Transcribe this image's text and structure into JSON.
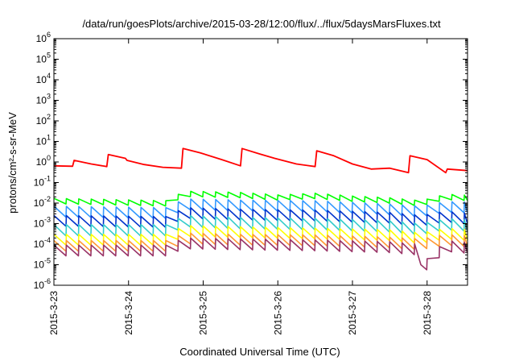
{
  "chart_data": {
    "type": "line",
    "title": "/data/run/goesPlots/archive/2015-03-28/12:00/flux/../flux/5daysMarsFluxes.txt",
    "xlabel": "Coordinated Universal Time (UTC)",
    "ylabel": "protons/cm²-s-sr-MeV",
    "y_scale": "log",
    "ylim": [
      1e-06,
      1000000.0
    ],
    "y_ticks": [
      {
        "base": "10",
        "exp": "-6",
        "value": 1e-06
      },
      {
        "base": "10",
        "exp": "-5",
        "value": 1e-05
      },
      {
        "base": "10",
        "exp": "-4",
        "value": 0.0001
      },
      {
        "base": "10",
        "exp": "-3",
        "value": 0.001
      },
      {
        "base": "10",
        "exp": "-2",
        "value": 0.01
      },
      {
        "base": "10",
        "exp": "-1",
        "value": 0.1
      },
      {
        "base": "10",
        "exp": "0",
        "value": 1
      },
      {
        "base": "10",
        "exp": "1",
        "value": 10
      },
      {
        "base": "10",
        "exp": "2",
        "value": 100
      },
      {
        "base": "10",
        "exp": "3",
        "value": 1000
      },
      {
        "base": "10",
        "exp": "4",
        "value": 10000
      },
      {
        "base": "10",
        "exp": "5",
        "value": 100000
      },
      {
        "base": "10",
        "exp": "6",
        "value": 1000000
      }
    ],
    "x_range": [
      "2015-03-23",
      "2015-03-28 13:00"
    ],
    "x_ticks": [
      "2015-3-23",
      "2015-3-24",
      "2015-3-25",
      "2015-3-26",
      "2015-3-27",
      "2015-3-28"
    ],
    "grid": false,
    "legend": "none",
    "series": [
      {
        "color": "#ff0000",
        "cycle_hours": 0,
        "x": [
          "2015-03-23 00:00",
          "2015-03-23 06:00",
          "2015-03-23 06:30",
          "2015-03-23 12:00",
          "2015-03-23 17:00",
          "2015-03-23 17:30",
          "2015-03-23 23:00",
          "2015-03-23 23:30",
          "2015-03-24 05:00",
          "2015-03-24 11:00",
          "2015-03-24 17:00",
          "2015-03-24 17:30",
          "2015-03-24 23:00",
          "2015-03-25 06:00",
          "2015-03-25 12:00",
          "2015-03-25 12:30",
          "2015-03-25 18:00",
          "2015-03-25 23:00",
          "2015-03-26 06:00",
          "2015-03-26 12:00",
          "2015-03-26 12:30",
          "2015-03-26 18:00",
          "2015-03-27 00:00",
          "2015-03-27 06:00",
          "2015-03-27 12:00",
          "2015-03-27 18:00",
          "2015-03-27 18:30",
          "2015-03-28 00:00",
          "2015-03-28 06:00",
          "2015-03-28 06:30",
          "2015-03-28 13:00"
        ],
        "y": [
          0.65,
          0.62,
          1.2,
          0.8,
          0.6,
          2.3,
          1.5,
          1.2,
          0.75,
          0.55,
          0.5,
          4.5,
          2.8,
          1.3,
          0.65,
          4.5,
          2.5,
          1.5,
          0.8,
          0.6,
          3.5,
          2.0,
          0.8,
          0.45,
          0.5,
          0.3,
          2.0,
          1.3,
          0.3,
          0.45,
          0.38
        ]
      },
      {
        "color": "#00ff00",
        "cycle_hours": 4,
        "x": [
          "2015-03-23 00:00",
          "2015-03-24 12:00",
          "2015-03-24 18:00",
          "2015-03-25 12:00",
          "2015-03-26 00:00",
          "2015-03-26 12:00",
          "2015-03-27 00:00",
          "2015-03-27 12:00",
          "2015-03-27 22:00",
          "2015-03-28 06:00",
          "2015-03-28 13:00"
        ],
        "y": [
          0.017,
          0.013,
          0.038,
          0.033,
          0.025,
          0.03,
          0.022,
          0.018,
          0.013,
          0.027,
          0.024
        ],
        "trough_ratio": 0.55
      },
      {
        "color": "#3399ff",
        "cycle_hours": 4,
        "x": [
          "2015-03-23 00:00",
          "2015-03-24 12:00",
          "2015-03-24 18:00",
          "2015-03-25 12:00",
          "2015-03-26 12:00",
          "2015-03-27 12:00",
          "2015-03-27 22:00",
          "2015-03-28 06:00",
          "2015-03-28 13:00"
        ],
        "y": [
          0.007,
          0.006,
          0.016,
          0.014,
          0.013,
          0.009,
          0.007,
          0.012,
          0.011
        ],
        "trough_ratio": 0.3
      },
      {
        "color": "#0033cc",
        "cycle_hours": 4,
        "x": [
          "2015-03-23 00:00",
          "2015-03-24 12:00",
          "2015-03-24 18:00",
          "2015-03-25 12:00",
          "2015-03-26 12:00",
          "2015-03-27 12:00",
          "2015-03-27 22:00",
          "2015-03-28 06:00",
          "2015-03-28 13:00"
        ],
        "y": [
          0.0025,
          0.0022,
          0.006,
          0.005,
          0.0045,
          0.0035,
          0.0025,
          0.004,
          0.0032
        ],
        "trough_ratio": 0.3
      },
      {
        "color": "#33cccc",
        "cycle_hours": 4,
        "x": [
          "2015-03-23 00:00",
          "2015-03-24 12:00",
          "2015-03-24 18:00",
          "2015-03-25 12:00",
          "2015-03-26 12:00",
          "2015-03-27 12:00",
          "2015-03-27 22:00",
          "2015-03-28 06:00",
          "2015-03-28 13:00"
        ],
        "y": [
          0.0009,
          0.0009,
          0.0025,
          0.002,
          0.0018,
          0.0014,
          0.001,
          0.0018,
          0.0015
        ],
        "trough_ratio": 0.28
      },
      {
        "color": "#ffff00",
        "cycle_hours": 4,
        "x": [
          "2015-03-23 00:00",
          "2015-03-24 12:00",
          "2015-03-24 18:00",
          "2015-03-25 12:00",
          "2015-03-26 12:00",
          "2015-03-27 12:00",
          "2015-03-27 22:00",
          "2015-03-28 06:00",
          "2015-03-28 13:00"
        ],
        "y": [
          0.0003,
          0.0003,
          0.0008,
          0.0007,
          0.0006,
          0.0005,
          0.00035,
          0.0006,
          0.0005
        ],
        "trough_ratio": 0.3
      },
      {
        "color": "#ff9933",
        "cycle_hours": 4,
        "x": [
          "2015-03-23 00:00",
          "2015-03-24 12:00",
          "2015-03-24 18:00",
          "2015-03-25 12:00",
          "2015-03-26 12:00",
          "2015-03-27 12:00",
          "2015-03-27 22:00",
          "2015-03-28 06:00",
          "2015-03-28 13:00"
        ],
        "y": [
          0.00015,
          0.00015,
          0.00035,
          0.0003,
          0.00028,
          0.00022,
          0.00018,
          0.0003,
          0.00025
        ],
        "trough_ratio": 0.3
      },
      {
        "color": "#993366",
        "cycle_hours": 4,
        "x": [
          "2015-03-23 00:00",
          "2015-03-24 12:00",
          "2015-03-24 18:00",
          "2015-03-25 12:00",
          "2015-03-26 12:00",
          "2015-03-27 12:00",
          "2015-03-27 21:00",
          "2015-03-27 22:00",
          "2015-03-28 06:00",
          "2015-03-28 13:00"
        ],
        "y": [
          9e-05,
          9e-05,
          0.0002,
          0.00018,
          0.00016,
          0.00013,
          0.0001,
          1e-05,
          0.00015,
          0.00012
        ],
        "trough_ratio": 0.3
      }
    ]
  }
}
